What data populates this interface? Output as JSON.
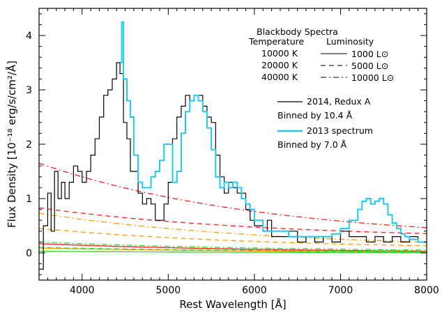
{
  "chart_data": {
    "type": "line",
    "xlabel": "Rest Wavelength [Å]",
    "ylabel": "Flux Density [10⁻¹⁸ erg/s/cm²/Å]",
    "xlim": [
      3500,
      8000
    ],
    "ylim": [
      -0.5,
      4.5
    ],
    "x_ticks": [
      4000,
      5000,
      6000,
      7000,
      8000
    ],
    "x_tick_labels": [
      "4000",
      "5000",
      "6000",
      "7000",
      "8000"
    ],
    "y_ticks": [
      0,
      1,
      2,
      3,
      4
    ],
    "y_tick_labels": [
      "0",
      "1",
      "2",
      "3",
      "4"
    ],
    "grid": false,
    "legend": {
      "title": "Blackbody Spectra",
      "header_temperature": "Temperature",
      "header_luminosity": "Luminosity",
      "temperatures": [
        {
          "label": "10000 K",
          "color": "#ff1a1a"
        },
        {
          "label": "20000 K",
          "color": "#ff9900"
        },
        {
          "label": "40000 K",
          "color": "#22dd22"
        }
      ],
      "luminosities": [
        {
          "label": "1000 L⊙",
          "dash": "solid"
        },
        {
          "label": "5000 L⊙",
          "dash": "dashed"
        },
        {
          "label": "10000 L⊙",
          "dash": "dashdot"
        }
      ],
      "spectra": [
        {
          "line1": "2014, Redux A",
          "line2": "Binned by 10.4 Å",
          "color": "#000000"
        },
        {
          "line1": "2013 spectrum",
          "line2": "Binned by 7.0 Å",
          "color": "#22c8f0"
        }
      ]
    },
    "series": [
      {
        "name": "2014, Redux A",
        "color": "#000000",
        "x": [
          3500,
          3550,
          3600,
          3640,
          3680,
          3720,
          3760,
          3800,
          3850,
          3900,
          3950,
          4000,
          4050,
          4100,
          4150,
          4200,
          4250,
          4300,
          4350,
          4400,
          4440,
          4480,
          4520,
          4560,
          4600,
          4650,
          4700,
          4750,
          4800,
          4850,
          4900,
          4950,
          5000,
          5050,
          5100,
          5150,
          5200,
          5250,
          5300,
          5350,
          5400,
          5450,
          5500,
          5550,
          5600,
          5650,
          5700,
          5750,
          5800,
          5850,
          5900,
          5950,
          6000,
          6050,
          6100,
          6150,
          6200,
          6300,
          6400,
          6500,
          6600,
          6700,
          6800,
          6900,
          7000,
          7100,
          7200,
          7300,
          7400,
          7500,
          7600,
          7700,
          7800,
          7900,
          8000
        ],
        "y": [
          -0.3,
          0.5,
          1.1,
          0.4,
          1.5,
          1.0,
          1.3,
          1.0,
          1.3,
          1.6,
          1.5,
          1.3,
          1.5,
          1.8,
          2.1,
          2.5,
          2.9,
          3.0,
          3.2,
          3.5,
          3.3,
          2.4,
          2.1,
          1.5,
          1.5,
          1.1,
          0.9,
          1.0,
          0.9,
          0.6,
          0.6,
          0.9,
          1.3,
          2.1,
          2.5,
          2.7,
          2.9,
          2.8,
          2.9,
          2.9,
          2.7,
          2.5,
          2.4,
          1.8,
          1.4,
          1.1,
          1.3,
          1.2,
          1.1,
          1.1,
          0.8,
          0.6,
          0.5,
          0.5,
          0.4,
          0.6,
          0.3,
          0.3,
          0.4,
          0.2,
          0.3,
          0.2,
          0.3,
          0.2,
          0.4,
          0.3,
          0.3,
          0.2,
          0.3,
          0.2,
          0.3,
          0.2,
          0.3,
          0.2,
          0.2
        ]
      },
      {
        "name": "2013 spectrum",
        "color": "#22c8f0",
        "x": [
          4440,
          4460,
          4480,
          4520,
          4560,
          4600,
          4650,
          4700,
          4750,
          4800,
          4850,
          4900,
          4950,
          5000,
          5050,
          5100,
          5150,
          5200,
          5250,
          5300,
          5350,
          5400,
          5450,
          5500,
          5550,
          5600,
          5650,
          5700,
          5750,
          5800,
          5850,
          5900,
          5950,
          6000,
          6100,
          6200,
          6300,
          6400,
          6500,
          6600,
          6700,
          6800,
          6900,
          7000,
          7100,
          7200,
          7250,
          7300,
          7350,
          7400,
          7450,
          7500,
          7550,
          7600,
          7650,
          7700,
          7750,
          7800,
          7900,
          8000
        ],
        "y": [
          3.5,
          4.25,
          3.2,
          2.8,
          2.5,
          1.8,
          1.3,
          1.2,
          1.2,
          1.4,
          1.5,
          1.7,
          2.0,
          2.0,
          1.3,
          1.5,
          2.2,
          2.6,
          2.8,
          2.9,
          2.8,
          2.6,
          2.3,
          1.9,
          1.4,
          1.2,
          1.3,
          1.2,
          1.3,
          1.2,
          1.0,
          0.9,
          0.8,
          0.6,
          0.4,
          0.4,
          0.4,
          0.3,
          0.3,
          0.3,
          0.3,
          0.3,
          0.35,
          0.45,
          0.6,
          0.8,
          0.95,
          1.0,
          0.9,
          0.95,
          1.0,
          0.9,
          0.7,
          0.55,
          0.45,
          0.35,
          0.3,
          0.25,
          0.2,
          0.2
        ]
      }
    ],
    "blackbody": [
      {
        "temperature": "10000 K",
        "luminosity": "1000 L⊙",
        "color": "#ff1a1a",
        "dash": "solid",
        "y_start": 0.17,
        "y_end": 0.0
      },
      {
        "temperature": "10000 K",
        "luminosity": "5000 L⊙",
        "color": "#ff1a1a",
        "dash": "dashed",
        "y_start": 0.83,
        "y_end": 0.25
      },
      {
        "temperature": "10000 K",
        "luminosity": "10000 L⊙",
        "color": "#ff1a1a",
        "dash": "dashdot",
        "y_start": 1.65,
        "y_end": 0.2
      },
      {
        "temperature": "20000 K",
        "luminosity": "1000 L⊙",
        "color": "#ff9900",
        "dash": "solid",
        "y_start": 0.09,
        "y_end": 0.0
      },
      {
        "temperature": "20000 K",
        "luminosity": "5000 L⊙",
        "color": "#ff9900",
        "dash": "dashed",
        "y_start": 0.45,
        "y_end": 0.06
      },
      {
        "temperature": "20000 K",
        "luminosity": "10000 L⊙",
        "color": "#ff9900",
        "dash": "dashdot",
        "y_start": 0.73,
        "y_end": 0.08
      },
      {
        "temperature": "40000 K",
        "luminosity": "1000 L⊙",
        "color": "#22dd22",
        "dash": "solid",
        "y_start": 0.03,
        "y_end": 0.0
      },
      {
        "temperature": "40000 K",
        "luminosity": "5000 L⊙",
        "color": "#22dd22",
        "dash": "dashed",
        "y_start": 0.1,
        "y_end": 0.01
      },
      {
        "temperature": "40000 K",
        "luminosity": "10000 L⊙",
        "color": "#22dd22",
        "dash": "dashdot",
        "y_start": 0.2,
        "y_end": 0.02
      }
    ]
  }
}
